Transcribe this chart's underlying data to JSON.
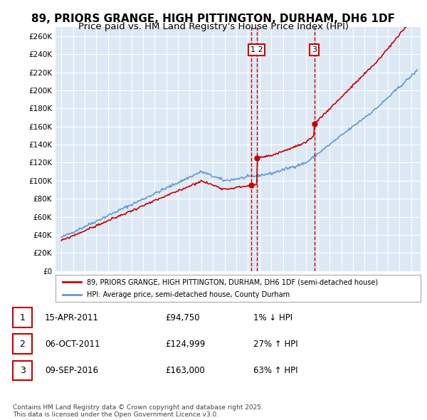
{
  "title": "89, PRIORS GRANGE, HIGH PITTINGTON, DURHAM, DH6 1DF",
  "subtitle": "Price paid vs. HM Land Registry's House Price Index (HPI)",
  "background_color": "#dce9f5",
  "plot_bg_color": "#dce9f5",
  "ylim": [
    0,
    270000
  ],
  "yticks": [
    0,
    20000,
    40000,
    60000,
    80000,
    100000,
    120000,
    140000,
    160000,
    180000,
    200000,
    220000,
    240000,
    260000
  ],
  "ytick_labels": [
    "£0",
    "£20K",
    "£40K",
    "£60K",
    "£80K",
    "£100K",
    "£120K",
    "£140K",
    "£160K",
    "£180K",
    "£200K",
    "£220K",
    "£240K",
    "£260K"
  ],
  "line1_color": "#cc0000",
  "line2_color": "#6699cc",
  "legend1_label": "89, PRIORS GRANGE, HIGH PITTINGTON, DURHAM, DH6 1DF (semi-detached house)",
  "legend2_label": "HPI: Average price, semi-detached house, County Durham",
  "sale1_date": 2011.29,
  "sale1_price": 94750,
  "sale1_label": "1",
  "sale1_date_str": "15-APR-2011",
  "sale1_pct": "1% ↓ HPI",
  "sale2_date": 2011.76,
  "sale2_price": 124999,
  "sale2_label": "2",
  "sale2_date_str": "06-OCT-2011",
  "sale2_pct": "27% ↑ HPI",
  "sale3_date": 2016.69,
  "sale3_price": 163000,
  "sale3_label": "3",
  "sale3_date_str": "09-SEP-2016",
  "sale3_pct": "63% ↑ HPI",
  "footer": "Contains HM Land Registry data © Crown copyright and database right 2025.\nThis data is licensed under the Open Government Licence v3.0.",
  "grid_color": "#ffffff",
  "box_color": "#cc0000"
}
